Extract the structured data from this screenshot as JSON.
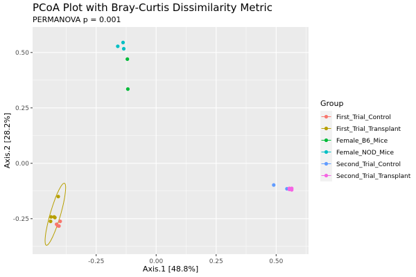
{
  "chart_data": {
    "type": "scatter",
    "title": "PCoA Plot with Bray-Curtis Dissimilarity Metric",
    "subtitle": "PERMANOVA p = 0.001",
    "xlabel": "Axis.1   [48.8%]",
    "ylabel": "Axis.2   [28.2%]",
    "xlim": [
      -0.515,
      0.635
    ],
    "ylim": [
      -0.41,
      0.615
    ],
    "x_ticks": [
      -0.25,
      0.0,
      0.25,
      0.5
    ],
    "x_tick_labels": [
      "-0.25",
      "0.00",
      "0.25",
      "0.50"
    ],
    "y_ticks": [
      -0.25,
      0.0,
      0.25,
      0.5
    ],
    "y_tick_labels": [
      "-0.25",
      "0.00",
      "0.25",
      "0.50"
    ],
    "grid": true,
    "legend_title": "Group",
    "legend_position": "right",
    "series": [
      {
        "name": "First_Trial_Control",
        "color": "#F8766D",
        "points": [
          [
            -0.4,
            -0.262
          ],
          [
            -0.415,
            -0.275
          ],
          [
            -0.41,
            -0.282
          ],
          [
            -0.405,
            -0.283
          ]
        ]
      },
      {
        "name": "First_Trial_Transplant",
        "color": "#B79F00",
        "points": [
          [
            -0.408,
            -0.15
          ],
          [
            -0.425,
            -0.242
          ],
          [
            -0.438,
            -0.242
          ],
          [
            -0.422,
            -0.245
          ],
          [
            -0.44,
            -0.262
          ]
        ]
      },
      {
        "name": "Female_B6_Mice",
        "color": "#00BA38",
        "points": [
          [
            -0.12,
            0.47
          ],
          [
            -0.118,
            0.335
          ]
        ]
      },
      {
        "name": "Female_NOD_Mice",
        "color": "#00BFC4",
        "points": [
          [
            -0.16,
            0.528
          ],
          [
            -0.138,
            0.545
          ],
          [
            -0.135,
            0.517
          ]
        ]
      },
      {
        "name": "Second_Trial_Control",
        "color": "#619CFF",
        "points": [
          [
            0.49,
            -0.098
          ],
          [
            0.545,
            -0.115
          ]
        ]
      },
      {
        "name": "Second_Trial_Transplant",
        "color": "#F564E3",
        "points": [
          [
            0.555,
            -0.113
          ],
          [
            0.565,
            -0.113
          ],
          [
            0.565,
            -0.12
          ],
          [
            0.555,
            -0.118
          ]
        ]
      }
    ],
    "ellipses": [
      {
        "series": "First_Trial_Transplant",
        "color": "#B79F00",
        "center": [
          -0.42,
          -0.23
        ],
        "rx": 0.145,
        "ry": 0.0215,
        "angle_deg": 75
      }
    ]
  }
}
